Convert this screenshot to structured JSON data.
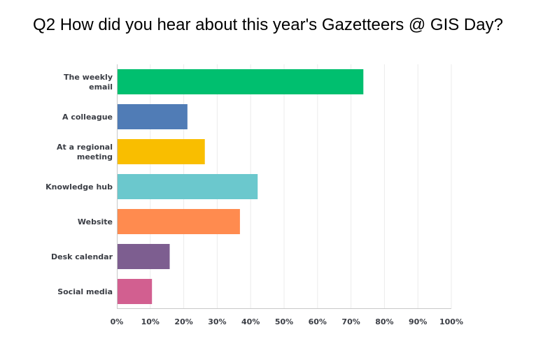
{
  "chart_data": {
    "type": "bar",
    "orientation": "horizontal",
    "title": "Q2 How did you hear about this year's Gazetteers @ GIS Day?",
    "categories": [
      [
        "The weekly",
        "email"
      ],
      [
        "A colleague"
      ],
      [
        "At a regional",
        "meeting"
      ],
      [
        "Knowledge hub"
      ],
      [
        "Website"
      ],
      [
        "Desk calendar"
      ],
      [
        "Social media"
      ]
    ],
    "values": [
      73.7,
      21.1,
      26.3,
      42.1,
      36.8,
      15.8,
      10.5
    ],
    "colors": [
      "#00bf6f",
      "#507cb6",
      "#f9be00",
      "#6bc8cd",
      "#ff8b4f",
      "#7d5e90",
      "#d25f90"
    ],
    "xlim": [
      0,
      100
    ],
    "ticks": [
      "0%",
      "10%",
      "20%",
      "30%",
      "40%",
      "50%",
      "60%",
      "70%",
      "80%",
      "90%",
      "100%"
    ],
    "grid": true,
    "grid_color": "#ebebeb",
    "axis_color": "#c8c8c8"
  }
}
